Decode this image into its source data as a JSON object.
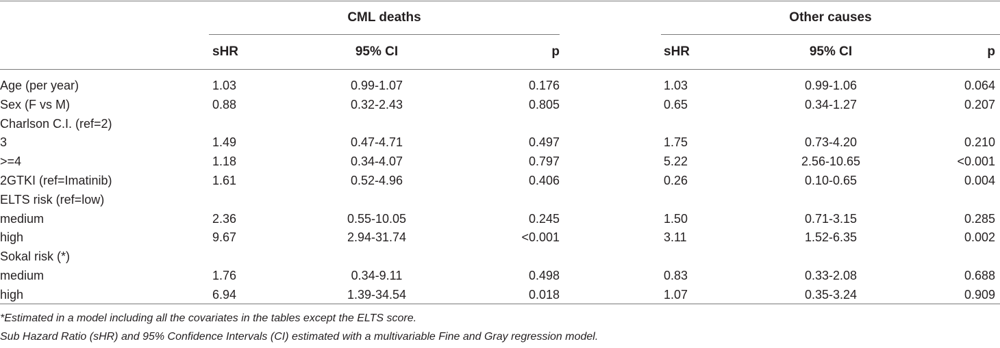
{
  "groups": {
    "cml": "CML deaths",
    "other": "Other causes"
  },
  "columns": {
    "shr": "sHR",
    "ci": "95% CI",
    "p": "p"
  },
  "rows": [
    {
      "label": "Age (per year)",
      "shr1": "1.03",
      "ci1": "0.99-1.07",
      "p1": "0.176",
      "shr2": "1.03",
      "ci2": "0.99-1.06",
      "p2": "0.064"
    },
    {
      "label": "Sex (F vs M)",
      "shr1": "0.88",
      "ci1": "0.32-2.43",
      "p1": "0.805",
      "shr2": "0.65",
      "ci2": "0.34-1.27",
      "p2": "0.207"
    },
    {
      "label": "Charlson C.I. (ref=2)",
      "shr1": "",
      "ci1": "",
      "p1": "",
      "shr2": "",
      "ci2": "",
      "p2": ""
    },
    {
      "label": "3",
      "shr1": "1.49",
      "ci1": "0.47-4.71",
      "p1": "0.497",
      "shr2": "1.75",
      "ci2": "0.73-4.20",
      "p2": "0.210"
    },
    {
      "label": ">=4",
      "shr1": "1.18",
      "ci1": "0.34-4.07",
      "p1": "0.797",
      "shr2": "5.22",
      "ci2": "2.56-10.65",
      "p2": "<0.001"
    },
    {
      "label": "2GTKI (ref=Imatinib)",
      "shr1": "1.61",
      "ci1": "0.52-4.96",
      "p1": "0.406",
      "shr2": "0.26",
      "ci2": "0.10-0.65",
      "p2": "0.004"
    },
    {
      "label": "ELTS risk (ref=low)",
      "shr1": "",
      "ci1": "",
      "p1": "",
      "shr2": "",
      "ci2": "",
      "p2": ""
    },
    {
      "label": "medium",
      "shr1": "2.36",
      "ci1": "0.55-10.05",
      "p1": "0.245",
      "shr2": "1.50",
      "ci2": "0.71-3.15",
      "p2": "0.285"
    },
    {
      "label": "high",
      "shr1": "9.67",
      "ci1": "2.94-31.74",
      "p1": "<0.001",
      "shr2": "3.11",
      "ci2": "1.52-6.35",
      "p2": "0.002"
    },
    {
      "label": "Sokal risk (*)",
      "shr1": "",
      "ci1": "",
      "p1": "",
      "shr2": "",
      "ci2": "",
      "p2": ""
    },
    {
      "label": "medium",
      "shr1": "1.76",
      "ci1": "0.34-9.11",
      "p1": "0.498",
      "shr2": "0.83",
      "ci2": "0.33-2.08",
      "p2": "0.688"
    },
    {
      "label": "high",
      "shr1": "6.94",
      "ci1": "1.39-34.54",
      "p1": "0.018",
      "shr2": "1.07",
      "ci2": "0.35-3.24",
      "p2": "0.909"
    }
  ],
  "notes": [
    "*Estimated in a model including all the covariates in the tables except the ELTS score.",
    "Sub Hazard Ratio (sHR) and 95% Confidence Intervals (CI) estimated with a multivariable Fine and Gray regression model."
  ]
}
